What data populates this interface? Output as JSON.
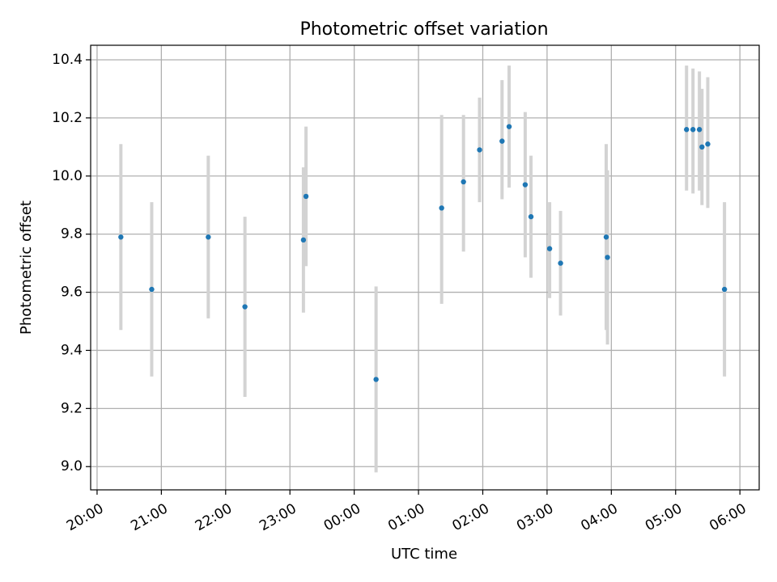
{
  "chart_data": {
    "type": "scatter",
    "title": "Photometric offset variation",
    "xlabel": "UTC time",
    "ylabel": "Photometric offset",
    "xlim_hours": [
      19.9,
      30.3
    ],
    "ylim": [
      8.92,
      10.45
    ],
    "grid": true,
    "x_ticks": [
      {
        "hour": 20,
        "label": "20:00"
      },
      {
        "hour": 21,
        "label": "21:00"
      },
      {
        "hour": 22,
        "label": "22:00"
      },
      {
        "hour": 23,
        "label": "23:00"
      },
      {
        "hour": 24,
        "label": "00:00"
      },
      {
        "hour": 25,
        "label": "01:00"
      },
      {
        "hour": 26,
        "label": "02:00"
      },
      {
        "hour": 27,
        "label": "03:00"
      },
      {
        "hour": 28,
        "label": "04:00"
      },
      {
        "hour": 29,
        "label": "05:00"
      },
      {
        "hour": 30,
        "label": "06:00"
      }
    ],
    "y_ticks": [
      {
        "value": 9.0,
        "label": "9.0"
      },
      {
        "value": 9.2,
        "label": "9.2"
      },
      {
        "value": 9.4,
        "label": "9.4"
      },
      {
        "value": 9.6,
        "label": "9.6"
      },
      {
        "value": 9.8,
        "label": "9.8"
      },
      {
        "value": 10.0,
        "label": "10.0"
      },
      {
        "value": 10.2,
        "label": "10.2"
      },
      {
        "value": 10.4,
        "label": "10.4"
      }
    ],
    "marker_color": "#1f77b4",
    "errorbar_color": "#d3d3d3",
    "points": [
      {
        "time": "20:22",
        "hour": 20.37,
        "y": 9.79,
        "ylow": 9.47,
        "yhigh": 10.11
      },
      {
        "time": "20:51",
        "hour": 20.85,
        "y": 9.61,
        "ylow": 9.31,
        "yhigh": 9.91
      },
      {
        "time": "21:44",
        "hour": 21.73,
        "y": 9.79,
        "ylow": 9.51,
        "yhigh": 10.07
      },
      {
        "time": "22:18",
        "hour": 22.3,
        "y": 9.55,
        "ylow": 9.24,
        "yhigh": 9.86
      },
      {
        "time": "23:13",
        "hour": 23.21,
        "y": 9.78,
        "ylow": 9.53,
        "yhigh": 10.03
      },
      {
        "time": "23:15",
        "hour": 23.25,
        "y": 9.93,
        "ylow": 9.69,
        "yhigh": 10.17
      },
      {
        "time": "00:20",
        "hour": 24.34,
        "y": 9.3,
        "ylow": 8.98,
        "yhigh": 9.62
      },
      {
        "time": "01:21",
        "hour": 25.36,
        "y": 9.89,
        "ylow": 9.56,
        "yhigh": 10.21
      },
      {
        "time": "01:42",
        "hour": 25.7,
        "y": 9.98,
        "ylow": 9.74,
        "yhigh": 10.21
      },
      {
        "time": "01:57",
        "hour": 25.95,
        "y": 10.09,
        "ylow": 9.91,
        "yhigh": 10.27
      },
      {
        "time": "02:18",
        "hour": 26.3,
        "y": 10.12,
        "ylow": 9.92,
        "yhigh": 10.33
      },
      {
        "time": "02:25",
        "hour": 26.41,
        "y": 10.17,
        "ylow": 9.96,
        "yhigh": 10.38
      },
      {
        "time": "02:40",
        "hour": 26.66,
        "y": 9.97,
        "ylow": 9.72,
        "yhigh": 10.22
      },
      {
        "time": "02:45",
        "hour": 26.75,
        "y": 9.86,
        "ylow": 9.65,
        "yhigh": 10.07
      },
      {
        "time": "03:03",
        "hour": 27.04,
        "y": 9.75,
        "ylow": 9.58,
        "yhigh": 9.91
      },
      {
        "time": "03:13",
        "hour": 27.21,
        "y": 9.7,
        "ylow": 9.52,
        "yhigh": 9.88
      },
      {
        "time": "03:55",
        "hour": 27.92,
        "y": 9.79,
        "ylow": 9.47,
        "yhigh": 10.11
      },
      {
        "time": "03:56",
        "hour": 27.94,
        "y": 9.72,
        "ylow": 9.42,
        "yhigh": 10.02
      },
      {
        "time": "05:10",
        "hour": 29.17,
        "y": 10.16,
        "ylow": 9.95,
        "yhigh": 10.38
      },
      {
        "time": "05:16",
        "hour": 29.27,
        "y": 10.16,
        "ylow": 9.94,
        "yhigh": 10.37
      },
      {
        "time": "05:22",
        "hour": 29.37,
        "y": 10.16,
        "ylow": 9.95,
        "yhigh": 10.36
      },
      {
        "time": "05:24",
        "hour": 29.41,
        "y": 10.1,
        "ylow": 9.9,
        "yhigh": 10.3
      },
      {
        "time": "05:30",
        "hour": 29.5,
        "y": 10.11,
        "ylow": 9.89,
        "yhigh": 10.34
      },
      {
        "time": "05:45",
        "hour": 29.76,
        "y": 9.61,
        "ylow": 9.31,
        "yhigh": 9.91
      }
    ]
  }
}
